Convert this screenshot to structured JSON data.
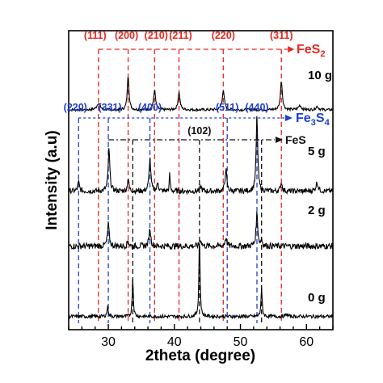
{
  "chart_data": {
    "type": "line",
    "xlabel": "2theta (degree)",
    "ylabel": "Intensity (a.u)",
    "xlim": [
      24,
      64
    ],
    "x_ticks": [
      30,
      40,
      50,
      60
    ],
    "y_ticks_labeled": false,
    "grid": false,
    "colors": {
      "FeS2": "#e8261f",
      "Fe3S4": "#1f3fd1",
      "FeS": "#111111",
      "trace": "#000000"
    },
    "phases": [
      {
        "name": "FeS2",
        "formula": "FeS",
        "subscript": "2",
        "color": "#e8261f",
        "peaks": [
          {
            "label": "(111)",
            "x": 28.5
          },
          {
            "label": "(200)",
            "x": 33.0
          },
          {
            "label": "(210)",
            "x": 37.0
          },
          {
            "label": "(211)",
            "x": 40.7
          },
          {
            "label": "(220)",
            "x": 47.4
          },
          {
            "label": "(311)",
            "x": 56.2
          }
        ]
      },
      {
        "name": "Fe3S4",
        "formula": "Fe",
        "subscript": "3",
        "formula2": "S",
        "subscript2": "4",
        "color": "#1f3fd1",
        "peaks": [
          {
            "label": "(220)",
            "x": 25.5
          },
          {
            "label": "(331)",
            "x": 30.0
          },
          {
            "label": "(400)",
            "x": 36.3
          },
          {
            "label": "(511)",
            "x": 48.0
          },
          {
            "label": "(440)",
            "x": 52.5
          }
        ]
      },
      {
        "name": "FeS",
        "formula": "FeS",
        "color": "#111111",
        "peaks": [
          {
            "label": "(102)",
            "x": 43.8
          }
        ],
        "extra_lines": [
          33.7,
          53.2
        ]
      }
    ],
    "series": [
      {
        "name": "10 g",
        "baseline": 10.0,
        "noise": 0.06,
        "peaks": [
          [
            28.5,
            0.3,
            0.6
          ],
          [
            33.0,
            1.6,
            0.3
          ],
          [
            37.0,
            0.9,
            0.35
          ],
          [
            40.7,
            0.8,
            0.35
          ],
          [
            47.4,
            0.85,
            0.4
          ],
          [
            56.2,
            1.3,
            0.35
          ],
          [
            59.0,
            0.2,
            0.5
          ],
          [
            61.6,
            0.15,
            0.5
          ]
        ]
      },
      {
        "name": "5 g",
        "baseline": 6.3,
        "noise": 0.12,
        "peaks": [
          [
            25.5,
            0.4,
            0.3
          ],
          [
            30.1,
            1.9,
            0.3
          ],
          [
            33.0,
            0.6,
            0.25
          ],
          [
            36.3,
            1.5,
            0.3
          ],
          [
            37.5,
            0.4,
            0.25
          ],
          [
            39.3,
            0.8,
            0.15
          ],
          [
            44.0,
            0.2,
            0.3
          ],
          [
            47.8,
            1.0,
            0.3
          ],
          [
            52.5,
            3.4,
            0.28
          ],
          [
            56.2,
            0.4,
            0.3
          ],
          [
            61.6,
            0.4,
            0.4
          ]
        ]
      },
      {
        "name": "2 g",
        "baseline": 3.8,
        "noise": 0.14,
        "peaks": [
          [
            30.0,
            1.0,
            0.3
          ],
          [
            33.0,
            0.3,
            0.25
          ],
          [
            36.3,
            0.8,
            0.3
          ],
          [
            44.0,
            0.3,
            0.3
          ],
          [
            47.8,
            0.4,
            0.3
          ],
          [
            52.5,
            1.5,
            0.3
          ],
          [
            53.2,
            0.3,
            0.25
          ]
        ]
      },
      {
        "name": "0 g",
        "baseline": 0.6,
        "noise": 0.08,
        "peaks": [
          [
            29.9,
            0.45,
            0.25
          ],
          [
            33.7,
            1.8,
            0.2
          ],
          [
            43.8,
            3.7,
            0.2
          ],
          [
            53.2,
            1.25,
            0.22
          ],
          [
            57.0,
            0.1,
            0.4
          ]
        ]
      }
    ]
  }
}
